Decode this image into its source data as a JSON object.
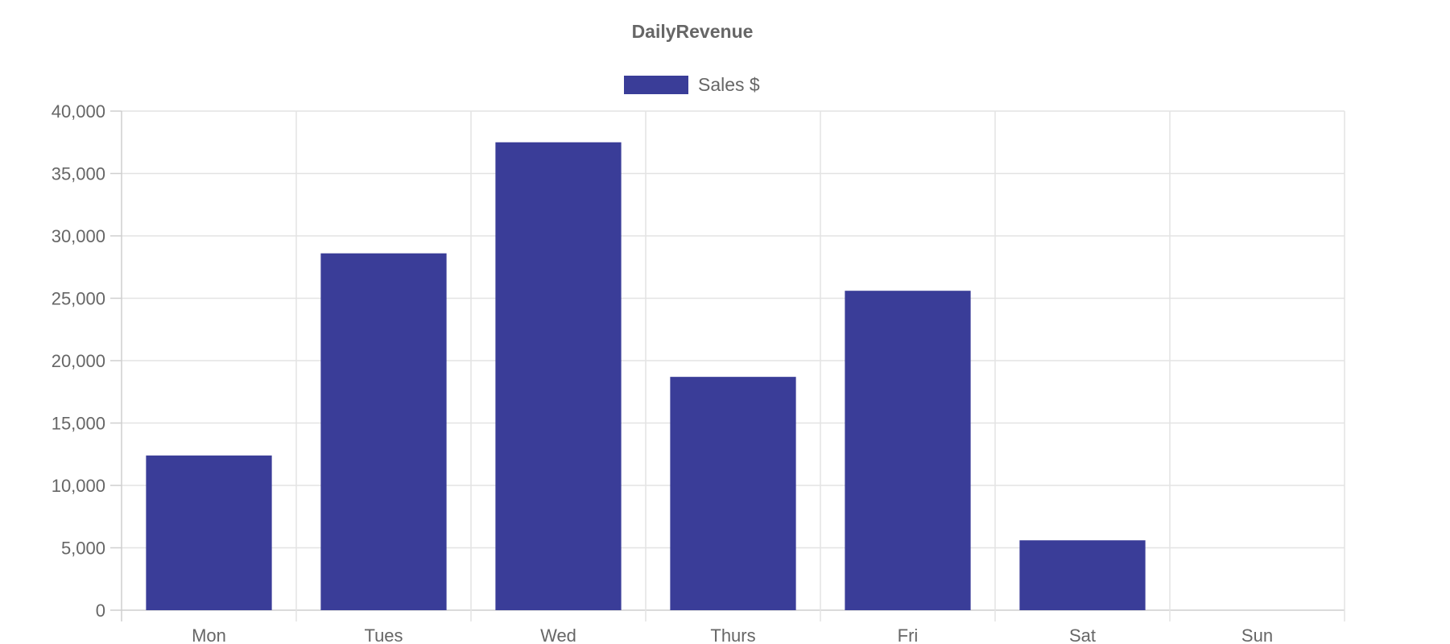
{
  "chart_data": {
    "type": "bar",
    "title": "DailyRevenue",
    "categories": [
      "Mon",
      "Tues",
      "Wed",
      "Thurs",
      "Fri",
      "Sat",
      "Sun"
    ],
    "series": [
      {
        "name": "Sales $",
        "values": [
          12400,
          28600,
          37500,
          18700,
          25600,
          5600,
          0
        ],
        "color": "#3a3d98"
      }
    ],
    "y_ticks": [
      "0",
      "5,000",
      "10,000",
      "15,000",
      "20,000",
      "25,000",
      "30,000",
      "35,000",
      "40,000"
    ],
    "ylim": [
      0,
      40000
    ],
    "grid": true,
    "legend_position": "top"
  }
}
